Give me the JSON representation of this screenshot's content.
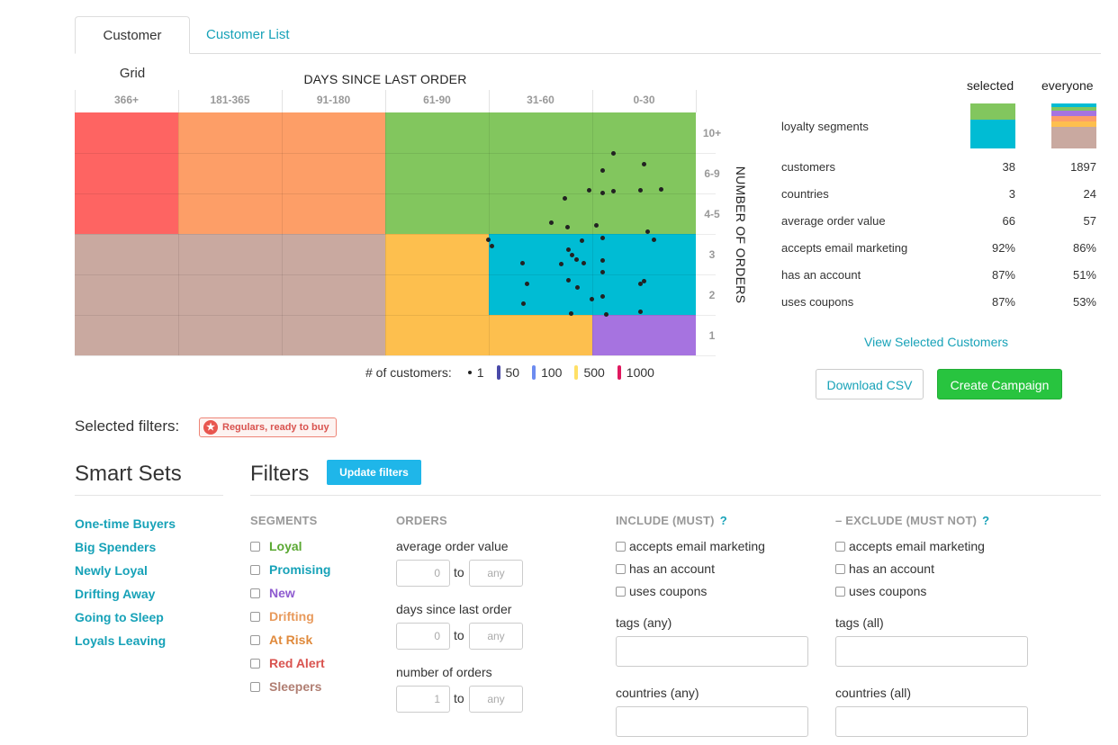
{
  "tabs": [
    {
      "label": "Customer Grid",
      "active": true
    },
    {
      "label": "Customer List",
      "active": false
    }
  ],
  "grid": {
    "title": "DAYS SINCE LAST ORDER",
    "y_title": "NUMBER OF ORDERS",
    "columns": [
      "366+",
      "181-365",
      "91-180",
      "61-90",
      "31-60",
      "0-30"
    ],
    "rows": [
      "10+",
      "6-9",
      "4-5",
      "3",
      "2",
      "1"
    ],
    "segment_colors": {
      "red_alert": "#fe6462",
      "drifting": "#fd9e67",
      "loyal": "#82c65e",
      "sleepers": "#c9a9a0",
      "at_risk": "#fdbf4e",
      "promising": "#00bcd4",
      "new": "#a673e0"
    },
    "legend": {
      "label": "# of customers:",
      "items": [
        {
          "value": "1",
          "color": "#222222",
          "kind": "dot"
        },
        {
          "value": "50",
          "color": "#4a4aa8",
          "kind": "bar"
        },
        {
          "value": "100",
          "color": "#6d8cf0",
          "kind": "bar"
        },
        {
          "value": "500",
          "color": "#ffe066",
          "kind": "bar"
        },
        {
          "value": "1000",
          "color": "#e0195f",
          "kind": "bar"
        }
      ]
    }
  },
  "stats": {
    "col_selected": "selected",
    "col_everyone": "everyone",
    "segments_label": "loyalty segments",
    "rows": [
      {
        "label": "customers",
        "selected": "38",
        "everyone": "1897"
      },
      {
        "label": "countries",
        "selected": "3",
        "everyone": "24"
      },
      {
        "label": "average order value",
        "selected": "66",
        "everyone": "57"
      },
      {
        "label": "accepts email marketing",
        "selected": "92%",
        "everyone": "86%"
      },
      {
        "label": "has an account",
        "selected": "87%",
        "everyone": "51%"
      },
      {
        "label": "uses coupons",
        "selected": "87%",
        "everyone": "53%"
      }
    ],
    "view_link": "View Selected Customers",
    "download": "Download CSV",
    "campaign": "Create Campaign"
  },
  "selected_filters": {
    "label": "Selected filters:",
    "chip": "Regulars, ready to buy"
  },
  "smart_sets": {
    "title": "Smart Sets",
    "items": [
      "One-time Buyers",
      "Big Spenders",
      "Newly Loyal",
      "Drifting Away",
      "Going to Sleep",
      "Loyals Leaving"
    ]
  },
  "filters": {
    "title": "Filters",
    "update_button": "Update filters",
    "segments": {
      "heading": "SEGMENTS",
      "items": [
        {
          "label": "Loyal",
          "color": "#5aa832"
        },
        {
          "label": "Promising",
          "color": "#17a2b8"
        },
        {
          "label": "New",
          "color": "#8e5bd0"
        },
        {
          "label": "Drifting",
          "color": "#e89a5c"
        },
        {
          "label": "At Risk",
          "color": "#e08a3c"
        },
        {
          "label": "Red Alert",
          "color": "#d9534f"
        },
        {
          "label": "Sleepers",
          "color": "#b07e72"
        }
      ]
    },
    "orders": {
      "heading": "ORDERS",
      "ranges": [
        {
          "label": "average order value",
          "from": "0",
          "to_label": "to",
          "to_placeholder": "any"
        },
        {
          "label": "days since last order",
          "from": "0",
          "to_label": "to",
          "to_placeholder": "any"
        },
        {
          "label": "number of orders",
          "from": "1",
          "to_label": "to",
          "to_placeholder": "any"
        }
      ]
    },
    "include": {
      "heading": "INCLUDE (MUST)",
      "help": "?",
      "options": [
        "accepts email marketing",
        "has an account",
        "uses coupons"
      ],
      "tags_label": "tags (any)",
      "countries_label": "countries (any)"
    },
    "exclude": {
      "heading": "– EXCLUDE (MUST NOT)",
      "help": "?",
      "options": [
        "accepts email marketing",
        "has an account",
        "uses coupons"
      ],
      "tags_label": "tags (all)",
      "countries_label": "countries (all)"
    }
  }
}
